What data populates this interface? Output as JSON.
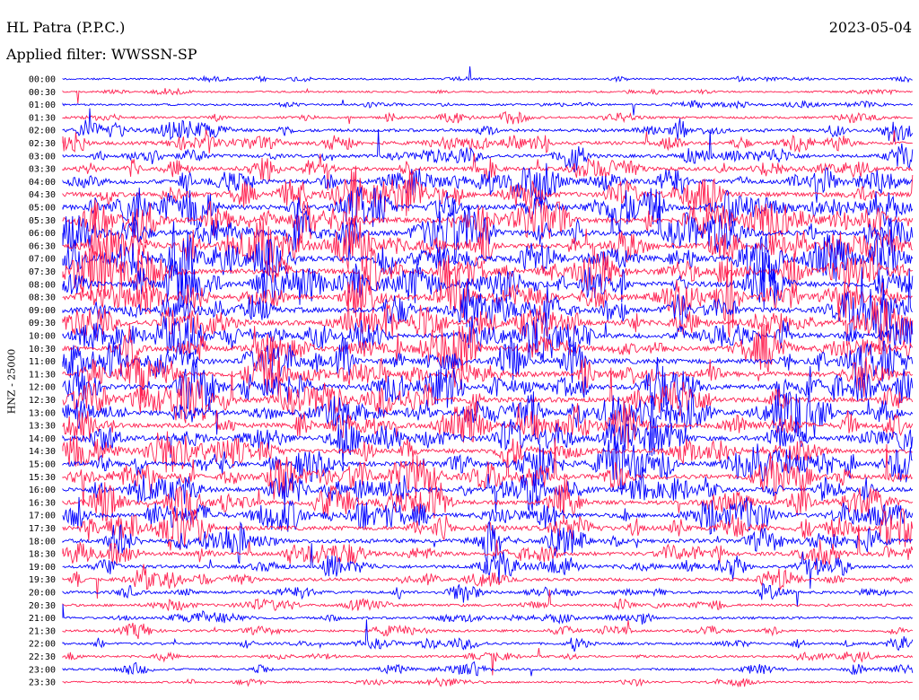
{
  "header": {
    "station": "HL Patra (P.P.C.)",
    "filter": "Applied filter: WWSSN-SP",
    "date": "2023-05-04"
  },
  "side_label": "HNZ - 25000",
  "colors": {
    "even_rows": "#0000ff",
    "odd_rows": "#ff2050"
  },
  "chart_data": {
    "type": "line",
    "chart_kind": "helicorder",
    "rows": [
      "00:00",
      "00:30",
      "01:00",
      "01:30",
      "02:00",
      "02:30",
      "03:00",
      "03:30",
      "04:00",
      "04:30",
      "05:00",
      "05:30",
      "06:00",
      "06:30",
      "07:00",
      "07:30",
      "08:00",
      "08:30",
      "09:00",
      "09:30",
      "10:00",
      "10:30",
      "11:00",
      "11:30",
      "12:00",
      "12:30",
      "13:00",
      "13:30",
      "14:00",
      "14:30",
      "15:00",
      "15:30",
      "16:00",
      "16:30",
      "17:00",
      "17:30",
      "18:00",
      "18:30",
      "19:00",
      "19:30",
      "20:00",
      "20:30",
      "21:00",
      "21:30",
      "22:00",
      "22:30",
      "23:00",
      "23:30"
    ],
    "row_activity": [
      0.15,
      0.15,
      0.2,
      0.25,
      0.45,
      0.55,
      0.5,
      0.6,
      0.75,
      0.85,
      0.9,
      0.95,
      1.0,
      1.0,
      1.0,
      1.0,
      1.0,
      0.95,
      0.95,
      0.9,
      0.9,
      0.9,
      0.95,
      0.95,
      0.9,
      0.9,
      0.9,
      0.85,
      0.85,
      0.8,
      0.85,
      0.85,
      0.8,
      0.75,
      0.75,
      0.75,
      0.7,
      0.6,
      0.5,
      0.45,
      0.4,
      0.35,
      0.3,
      0.3,
      0.3,
      0.25,
      0.25,
      0.2
    ],
    "row_colors_alternate": [
      "blue",
      "red"
    ],
    "legend": "none",
    "grid": false
  }
}
